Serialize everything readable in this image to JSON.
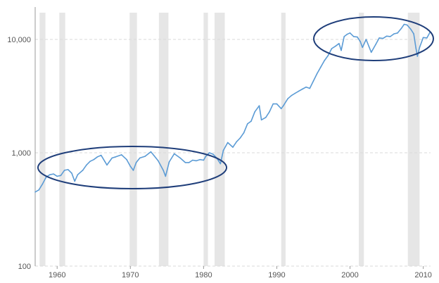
{
  "chart_data": {
    "type": "line",
    "title": "",
    "xlabel": "",
    "ylabel": "",
    "y_scale": "log",
    "xlim": [
      1957,
      2011
    ],
    "ylim": [
      100,
      20000
    ],
    "x_ticks": [
      1960,
      1970,
      1980,
      1990,
      2000,
      2010
    ],
    "x_tick_labels": [
      "1960",
      "1970",
      "1980",
      "1990",
      "2000",
      "2010"
    ],
    "y_ticks": [
      100,
      1000,
      10000
    ],
    "y_tick_labels": [
      "100",
      "1,000",
      "10,000"
    ],
    "grid": "horizontal dashed",
    "legend": "none",
    "colors": {
      "series": "#5b9bd5",
      "recession_band": "#e6e6e6",
      "annotation": "#1f3e7a",
      "gridline": "#d9d9d9"
    },
    "recession_shading": [
      {
        "start": 1957.6,
        "end": 1958.4
      },
      {
        "start": 1960.3,
        "end": 1961.1
      },
      {
        "start": 1969.9,
        "end": 1970.9
      },
      {
        "start": 1973.9,
        "end": 1975.2
      },
      {
        "start": 1980.0,
        "end": 1980.6
      },
      {
        "start": 1981.5,
        "end": 1982.9
      },
      {
        "start": 1990.6,
        "end": 1991.2
      },
      {
        "start": 2001.2,
        "end": 2001.9
      },
      {
        "start": 2007.9,
        "end": 2009.5
      }
    ],
    "series": [
      {
        "x": [
          1957.0,
          1957.5,
          1958.0,
          1958.5,
          1959.0,
          1959.5,
          1960.0,
          1960.5,
          1961.0,
          1961.5,
          1962.0,
          1962.4,
          1962.8,
          1963.5,
          1964.0,
          1964.5,
          1965.0,
          1965.5,
          1966.0,
          1966.5,
          1966.8,
          1967.5,
          1968.0,
          1968.8,
          1969.5,
          1970.0,
          1970.4,
          1970.8,
          1971.3,
          1972.0,
          1972.8,
          1973.2,
          1973.8,
          1974.5,
          1974.8,
          1975.3,
          1976.0,
          1976.8,
          1977.5,
          1978.0,
          1978.5,
          1979.0,
          1979.5,
          1980.0,
          1980.3,
          1980.8,
          1981.3,
          1981.8,
          1982.3,
          1982.7,
          1983.3,
          1984.0,
          1984.5,
          1985.0,
          1985.5,
          1986.0,
          1986.5,
          1987.0,
          1987.6,
          1987.9,
          1988.5,
          1989.0,
          1989.5,
          1990.0,
          1990.6,
          1990.9,
          1991.5,
          1992.0,
          1992.5,
          1993.0,
          1993.5,
          1994.0,
          1994.5,
          1995.0,
          1995.5,
          1996.0,
          1996.5,
          1997.0,
          1997.5,
          1998.0,
          1998.5,
          1998.8,
          1999.2,
          1999.6,
          2000.0,
          2000.5,
          2001.0,
          2001.4,
          2001.7,
          2002.2,
          2002.6,
          2002.9,
          2003.5,
          2004.0,
          2004.5,
          2005.0,
          2005.5,
          2006.0,
          2006.5,
          2007.0,
          2007.4,
          2007.8,
          2008.3,
          2008.7,
          2009.0,
          2009.2,
          2009.5,
          2010.0,
          2010.5,
          2010.9
        ],
        "y": [
          450,
          470,
          530,
          610,
          640,
          650,
          620,
          630,
          700,
          710,
          660,
          560,
          640,
          700,
          780,
          840,
          870,
          920,
          950,
          840,
          780,
          900,
          920,
          960,
          870,
          760,
          700,
          820,
          900,
          930,
          1020,
          950,
          850,
          700,
          620,
          830,
          980,
          900,
          820,
          820,
          860,
          850,
          870,
          860,
          930,
          1000,
          970,
          900,
          800,
          1050,
          1230,
          1120,
          1250,
          1350,
          1500,
          1800,
          1900,
          2300,
          2600,
          1950,
          2050,
          2300,
          2700,
          2700,
          2450,
          2600,
          3000,
          3200,
          3350,
          3500,
          3650,
          3800,
          3700,
          4300,
          5000,
          5700,
          6500,
          7200,
          8300,
          8700,
          9200,
          8000,
          10600,
          11100,
          11400,
          10600,
          10500,
          9600,
          8500,
          10000,
          8600,
          7700,
          9000,
          10300,
          10200,
          10700,
          10600,
          11200,
          11400,
          12500,
          13600,
          13400,
          12300,
          11200,
          8400,
          7100,
          8500,
          10400,
          10300,
          11500
        ]
      }
    ]
  }
}
